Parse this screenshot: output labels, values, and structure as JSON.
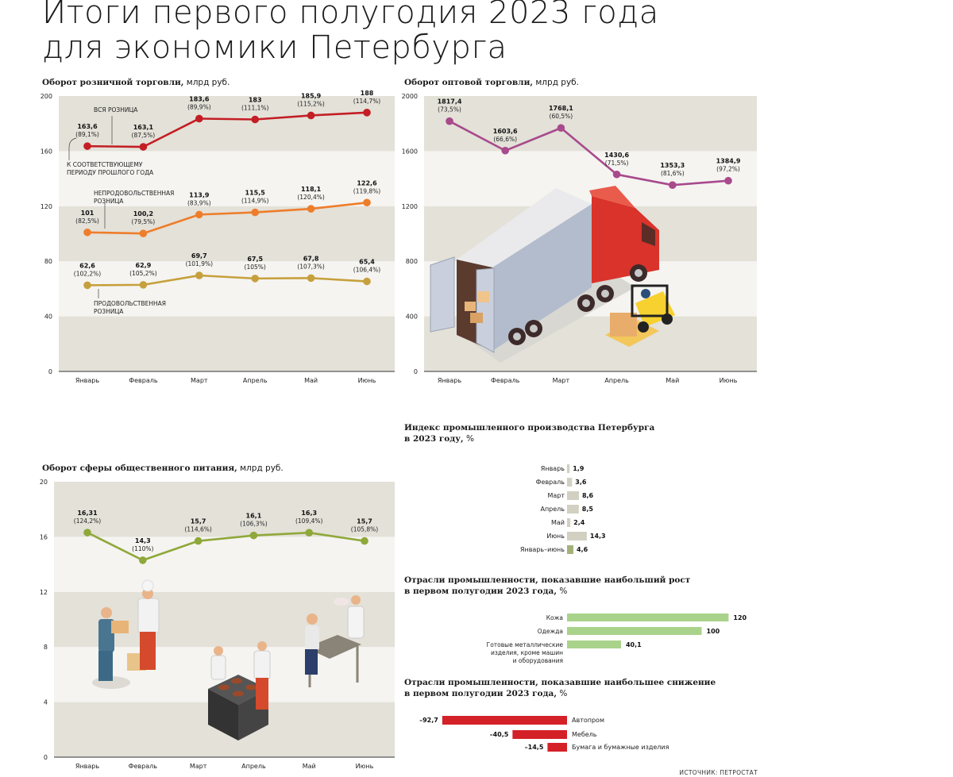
{
  "title": [
    "Итоги первого полугодия 2023 года",
    "для экономики Петербурга"
  ],
  "source": "ИСТОЧНИК: ПЕТРОСТАТ",
  "chart_data": [
    {
      "id": "retail",
      "type": "line",
      "title": "Оборот розничной торговли,",
      "unit": "млрд руб.",
      "categories": [
        "Январь",
        "Февраль",
        "Март",
        "Апрель",
        "Май",
        "Июнь"
      ],
      "ylim": [
        0,
        200
      ],
      "yticks": [
        "0",
        "40",
        "80",
        "120",
        "160",
        "200"
      ],
      "series": [
        {
          "name": "ВСЯ РОЗНИЦА",
          "color": "#c41e25",
          "values": [
            163.6,
            163.1,
            183.6,
            183,
            185.9,
            188
          ],
          "labels": [
            "163,6",
            "163,1",
            "183,6",
            "183",
            "185,9",
            "188"
          ],
          "sub": [
            "(89,1%)",
            "(87,5%)",
            "(89,9%)",
            "(111,1%)",
            "(115,2%)",
            "(114,7%)"
          ]
        },
        {
          "name": "НЕПРОДОВОЛЬСТВЕННАЯ РОЗНИЦА",
          "color": "#ee7d2b",
          "values": [
            101,
            100.2,
            113.9,
            115.5,
            118.1,
            122.6
          ],
          "labels": [
            "101",
            "100,2",
            "113,9",
            "115,5",
            "118,1",
            "122,6"
          ],
          "sub": [
            "(82,5%)",
            "(79,5%)",
            "(83,9%)",
            "(114,9%)",
            "(120,4%)",
            "(119,8%)"
          ]
        },
        {
          "name": "ПРОДОВОЛЬСТВЕННАЯ РОЗНИЦА",
          "color": "#c6a03c",
          "values": [
            62.6,
            62.9,
            69.7,
            67.5,
            67.8,
            65.4
          ],
          "labels": [
            "62,6",
            "62,9",
            "69,7",
            "67,5",
            "67,8",
            "65,4"
          ],
          "sub": [
            "(102,2%)",
            "(105,2%)",
            "(101,9%)",
            "(105%)",
            "(107,3%)",
            "(106,4%)"
          ]
        }
      ],
      "annotations": {
        "all": "ВСЯ РОЗНИЦА",
        "yoy": [
          "К СООТВЕТСТВУЮЩЕМУ",
          "ПЕРИОДУ ПРОШЛОГО ГОДА"
        ],
        "nonfood": [
          "НЕПРОДОВОЛЬСТВЕННАЯ",
          "РОЗНИЦА"
        ],
        "food": [
          "ПРОДОВОЛЬСТВЕННАЯ",
          "РОЗНИЦА"
        ]
      }
    },
    {
      "id": "wholesale",
      "type": "line",
      "title": "Оборот оптовой торговли,",
      "unit": "млрд руб.",
      "categories": [
        "Январь",
        "Февраль",
        "Март",
        "Апрель",
        "Май",
        "Июнь"
      ],
      "ylim": [
        0,
        2000
      ],
      "yticks": [
        "0",
        "400",
        "800",
        "1200",
        "1600",
        "2000"
      ],
      "series": [
        {
          "color": "#a84a8c",
          "values": [
            1817.4,
            1603.6,
            1768.1,
            1430.6,
            1353.3,
            1384.9
          ],
          "labels": [
            "1817,4",
            "1603,6",
            "1768,1",
            "1430,6",
            "1353,3",
            "1384,9"
          ],
          "sub": [
            "(73,5%)",
            "(66,6%)",
            "(60,5%)",
            "(71,5%)",
            "(81,6%)",
            "(97,2%)"
          ]
        }
      ]
    },
    {
      "id": "catering",
      "type": "line",
      "title": "Оборот сферы общественного питания,",
      "unit": "млрд руб.",
      "categories": [
        "Январь",
        "Февраль",
        "Март",
        "Апрель",
        "Май",
        "Июнь"
      ],
      "ylim": [
        0,
        20
      ],
      "yticks": [
        "0",
        "4",
        "8",
        "12",
        "16",
        "20"
      ],
      "series": [
        {
          "color": "#8fa83a",
          "values": [
            16.31,
            14.3,
            15.7,
            16.1,
            16.3,
            15.7
          ],
          "labels": [
            "16,31",
            "14,3",
            "15,7",
            "16,1",
            "16,3",
            "15,7"
          ],
          "sub": [
            "(124,2%)",
            "(110%)",
            "(114,6%)",
            "(106,3%)",
            "(109,4%)",
            "(105,8%)"
          ]
        }
      ]
    },
    {
      "id": "industry",
      "type": "bar",
      "title": [
        "Индекс промышленного производства Петербурга",
        "в 2023 году,"
      ],
      "unit": "%",
      "categories": [
        "Январь",
        "Февраль",
        "Март",
        "Апрель",
        "Май",
        "Июнь",
        "Январь–июнь"
      ],
      "values": [
        1.9,
        3.6,
        8.6,
        8.5,
        2.4,
        14.3,
        4.6
      ],
      "labels": [
        "1,9",
        "3,6",
        "8,6",
        "8,5",
        "2,4",
        "14,3",
        "4,6"
      ],
      "colors": [
        "#d2d0c1",
        "#d2d0c1",
        "#d2d0c1",
        "#d2d0c1",
        "#d2d0c1",
        "#d2d0c1",
        "#a3b27a"
      ]
    },
    {
      "id": "growth",
      "type": "bar",
      "title": [
        "Отрасли промышленности, показавшие наибольший рост",
        "в первом полугодии 2023 года,"
      ],
      "unit": "%",
      "categories": [
        [
          "Кожа"
        ],
        [
          "Одежда"
        ],
        [
          "Готовые металлические",
          "изделия, кроме машин",
          "и оборудования"
        ]
      ],
      "values": [
        120,
        100,
        40.1
      ],
      "labels": [
        "120",
        "100",
        "40,1"
      ],
      "color": "#a9d38a"
    },
    {
      "id": "decline",
      "type": "bar",
      "title": [
        "Отрасли промышленности, показавшие наибольшее снижение",
        "в первом полугодии 2023 года,"
      ],
      "unit": "%",
      "categories": [
        "Автопром",
        "Мебель",
        "Бумага и бумажные изделия"
      ],
      "values": [
        -92.7,
        -40.5,
        -14.5
      ],
      "labels": [
        "–92,7",
        "–40,5",
        "–14,5"
      ],
      "color": "#d42027"
    }
  ]
}
